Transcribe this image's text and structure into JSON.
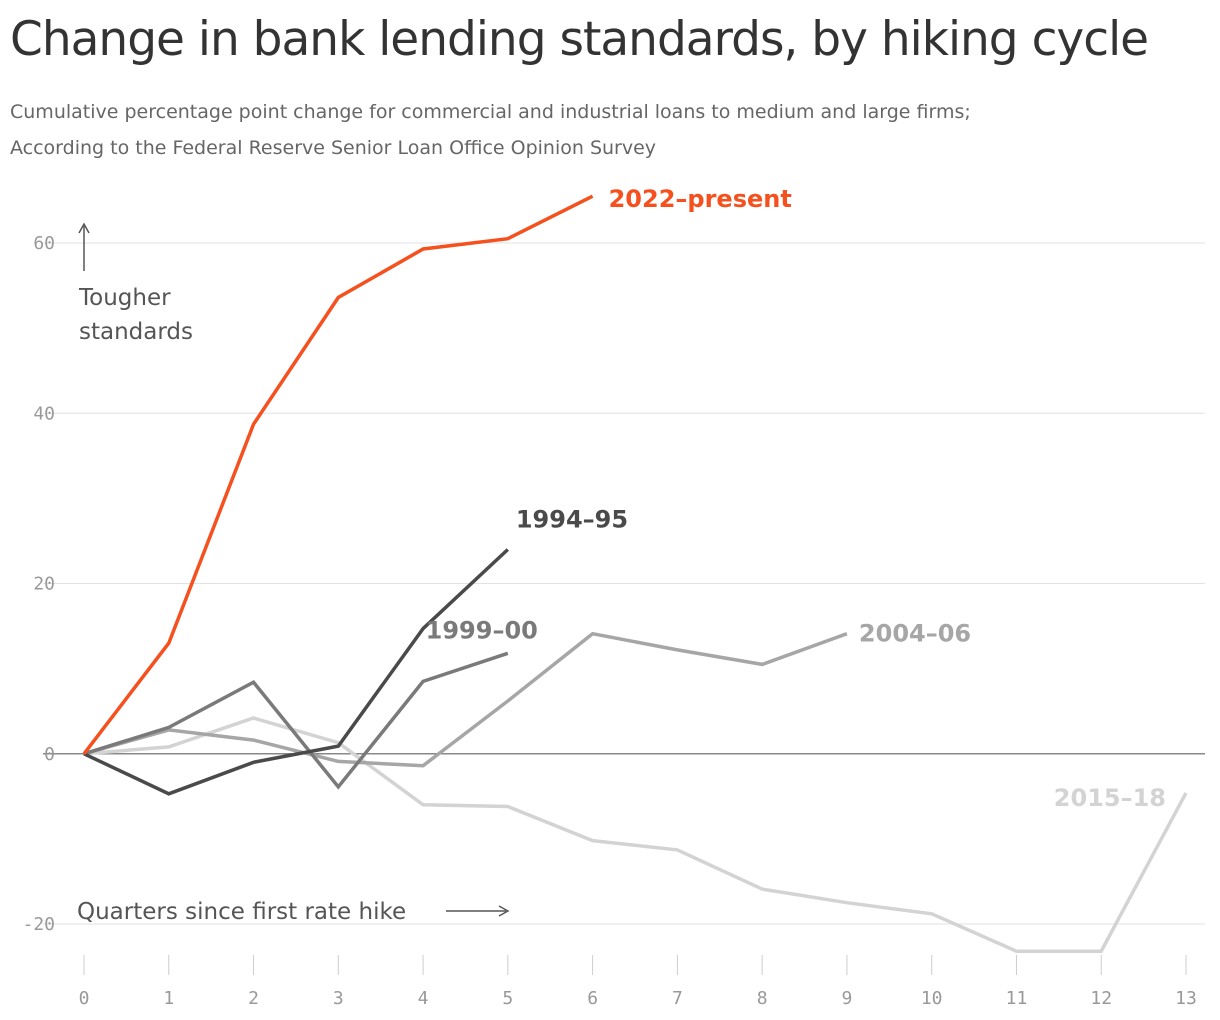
{
  "title": "Change in bank lending standards, by hiking cycle",
  "subtitle_lines": [
    "Cumulative percentage point change for commercial and industrial loans to medium and large firms;",
    "According to the Federal Reserve Senior Loan Office Opinion Survey"
  ],
  "annotations": {
    "y_direction_line1": "Tougher",
    "y_direction_line2": "standards",
    "x_direction": "Quarters since first rate hike"
  },
  "chart_data": {
    "type": "line",
    "title": "Change in bank lending standards, by hiking cycle",
    "xlabel": "Quarters since first rate hike",
    "ylabel": "",
    "x_ticks": [
      0,
      1,
      2,
      3,
      4,
      5,
      6,
      7,
      8,
      9,
      10,
      11,
      12,
      13
    ],
    "y_ticks": [
      -20,
      0,
      20,
      40,
      60
    ],
    "xlim": [
      0,
      13
    ],
    "ylim": [
      -20,
      60
    ],
    "grid": true,
    "series": [
      {
        "name": "2015–18",
        "color": "#d3d3d3",
        "label_bold": true,
        "x": [
          0,
          1,
          2,
          3,
          4,
          5,
          6,
          7,
          8,
          9,
          10,
          11,
          12,
          13
        ],
        "values": [
          0,
          0.8,
          4.2,
          1.3,
          -6,
          -6.2,
          -10.2,
          -11.3,
          -15.9,
          -17.5,
          -18.8,
          -23.2,
          -23.2,
          -4.6
        ]
      },
      {
        "name": "2004–06",
        "color": "#a6a6a6",
        "label_bold": false,
        "x": [
          0,
          1,
          2,
          3,
          4,
          5,
          6,
          7,
          8,
          9
        ],
        "values": [
          0,
          2.8,
          1.6,
          -0.9,
          -1.4,
          6.2,
          14.1,
          12.2,
          10.5,
          14.1
        ]
      },
      {
        "name": "1999–00",
        "color": "#7a7a7a",
        "label_bold": false,
        "x": [
          0,
          1,
          2,
          3,
          4,
          5
        ],
        "values": [
          0,
          3.1,
          8.4,
          -3.9,
          8.5,
          11.8
        ]
      },
      {
        "name": "1994–95",
        "color": "#4a4a4a",
        "label_bold": false,
        "x": [
          0,
          1,
          2,
          3,
          4,
          5
        ],
        "values": [
          0,
          -4.7,
          -1,
          0.9,
          14.7,
          24
        ]
      },
      {
        "name": "2022–present",
        "color": "#f5501e",
        "label_bold": true,
        "x": [
          0,
          1,
          2,
          3,
          4,
          5,
          6
        ],
        "values": [
          0,
          13,
          38.7,
          53.6,
          59.3,
          60.5,
          65.5
        ]
      }
    ]
  }
}
